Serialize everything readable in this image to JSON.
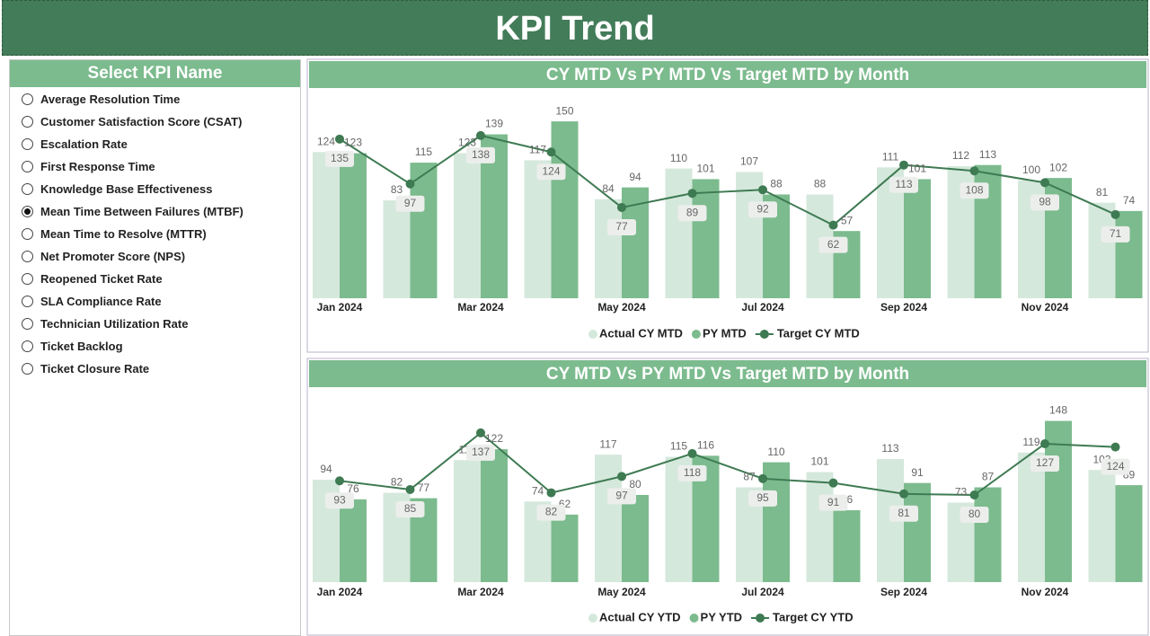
{
  "header": {
    "title": "KPI Trend"
  },
  "slicer": {
    "title": "Select KPI Name",
    "selected_index": 5,
    "options": [
      "Average Resolution Time",
      "Customer Satisfaction Score (CSAT)",
      "Escalation Rate",
      "First Response Time",
      "Knowledge Base Effectiveness",
      "Mean Time Between Failures (MTBF)",
      "Mean Time to Resolve (MTTR)",
      "Net Promoter Score (NPS)",
      "Reopened Ticket Rate",
      "SLA Compliance Rate",
      "Technician Utilization Rate",
      "Ticket Backlog",
      "Ticket Closure Rate"
    ]
  },
  "chart_data": [
    {
      "type": "combo",
      "title": "CY MTD Vs PY MTD Vs Target MTD by Month",
      "categories": [
        "Jan 2024",
        null,
        "Mar 2024",
        null,
        "May 2024",
        null,
        "Jul 2024",
        null,
        "Sep 2024",
        null,
        "Nov 2024",
        null
      ],
      "ylim": [
        0,
        160
      ],
      "series": [
        {
          "name": "Actual CY MTD",
          "type": "bar",
          "color": "#d5e8dc",
          "values": [
            124,
            83,
            123,
            117,
            84,
            110,
            107,
            88,
            111,
            112,
            100,
            81
          ]
        },
        {
          "name": "PY MTD",
          "type": "bar",
          "color": "#7cbb8e",
          "values": [
            123,
            115,
            139,
            150,
            94,
            101,
            88,
            57,
            101,
            113,
            102,
            74
          ]
        },
        {
          "name": "Target CY MTD",
          "type": "line",
          "color": "#3e7a52",
          "values": [
            135,
            97,
            138,
            124,
            77,
            89,
            92,
            62,
            113,
            108,
            98,
            71
          ]
        }
      ]
    },
    {
      "type": "combo",
      "title": "CY MTD Vs PY MTD Vs Target MTD by Month",
      "categories": [
        "Jan 2024",
        null,
        "Mar 2024",
        null,
        "May 2024",
        null,
        "Jul 2024",
        null,
        "Sep 2024",
        null,
        "Nov 2024",
        null
      ],
      "ylim": [
        0,
        160
      ],
      "series": [
        {
          "name": "Actual CY YTD",
          "type": "bar",
          "color": "#d5e8dc",
          "values": [
            94,
            82,
            112,
            74,
            117,
            115,
            87,
            101,
            113,
            73,
            119,
            103
          ]
        },
        {
          "name": "PY YTD",
          "type": "bar",
          "color": "#7cbb8e",
          "values": [
            76,
            77,
            122,
            62,
            80,
            116,
            110,
            66,
            91,
            87,
            148,
            89
          ]
        },
        {
          "name": "Target CY YTD",
          "type": "line",
          "color": "#3e7a52",
          "values": [
            93,
            85,
            137,
            82,
            97,
            118,
            95,
            91,
            81,
            80,
            127,
            124
          ]
        }
      ]
    }
  ]
}
